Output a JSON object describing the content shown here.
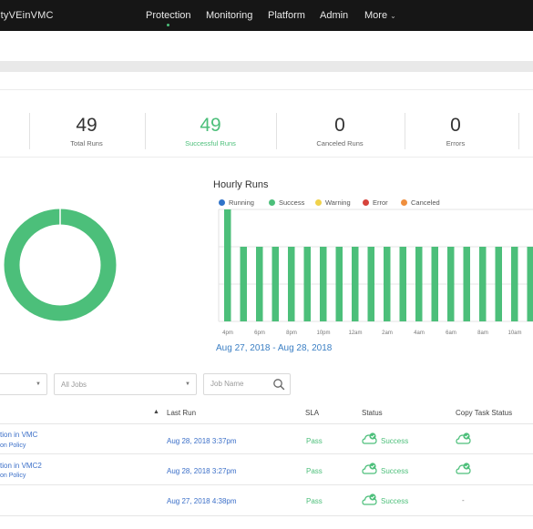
{
  "app": {
    "title": "ityVEinVMC"
  },
  "nav": [
    {
      "label": "Protection",
      "active": true
    },
    {
      "label": "Monitoring",
      "active": false
    },
    {
      "label": "Platform",
      "active": false
    },
    {
      "label": "Admin",
      "active": false
    },
    {
      "label": "More",
      "active": false
    }
  ],
  "stats": [
    {
      "value": "49",
      "label": "Total Runs"
    },
    {
      "value": "49",
      "label": "Successful Runs"
    },
    {
      "value": "0",
      "label": "Canceled Runs"
    },
    {
      "value": "0",
      "label": "Errors"
    }
  ],
  "colors": {
    "success": "#4cbf7a",
    "running": "#2f73c9",
    "warning": "#f0d24b",
    "error": "#d6433b",
    "canceled": "#ef8f3e",
    "link": "#3b6fc8"
  },
  "hourly": {
    "title": "Hourly Runs",
    "legend": [
      {
        "label": "Running",
        "color": "#2f73c9"
      },
      {
        "label": "Success",
        "color": "#4cbf7a"
      },
      {
        "label": "Warning",
        "color": "#f0d24b"
      },
      {
        "label": "Error",
        "color": "#d6433b"
      },
      {
        "label": "Canceled",
        "color": "#ef8f3e"
      }
    ],
    "date_range": "Aug 27, 2018 - Aug 28, 2018"
  },
  "chart_data": {
    "type": "bar",
    "title": "Hourly Runs",
    "x_ticks": [
      "4pm",
      "6pm",
      "8pm",
      "10pm",
      "12am",
      "2am",
      "4am",
      "6am",
      "8am",
      "10am",
      "12pm"
    ],
    "series": [
      {
        "name": "Success",
        "values": [
          3,
          2,
          2,
          2,
          2,
          2,
          2,
          2,
          2,
          2,
          2,
          2,
          2,
          2,
          2,
          2,
          2,
          2,
          2,
          2,
          2,
          2,
          2
        ]
      }
    ],
    "ylim": [
      0,
      3
    ],
    "grid": true
  },
  "donut": {
    "success_fraction": 1.0
  },
  "filters": {
    "first_value": "",
    "jobs": "All Jobs",
    "job_name_placeholder": "Job Name"
  },
  "table": {
    "columns": {
      "last_run": "Last Run",
      "sla": "SLA",
      "status": "Status",
      "copy": "Copy Task Status"
    },
    "rows": [
      {
        "name": "tion in VMC",
        "policy": "on Policy",
        "last_run": "Aug 28, 2018 3:37pm",
        "sla": "Pass",
        "status": "Success",
        "copy": "check"
      },
      {
        "name": "tion in VMC2",
        "policy": "on Policy",
        "last_run": "Aug 28, 2018 3:27pm",
        "sla": "Pass",
        "status": "Success",
        "copy": "check"
      },
      {
        "name": "",
        "policy": "",
        "last_run": "Aug 27, 2018 4:38pm",
        "sla": "Pass",
        "status": "Success",
        "copy": "-"
      }
    ]
  },
  "icons": {
    "status": "cloud-check-icon",
    "copy": "cloud-check-icon",
    "search": "search-icon",
    "sort": "sort-up-icon"
  }
}
